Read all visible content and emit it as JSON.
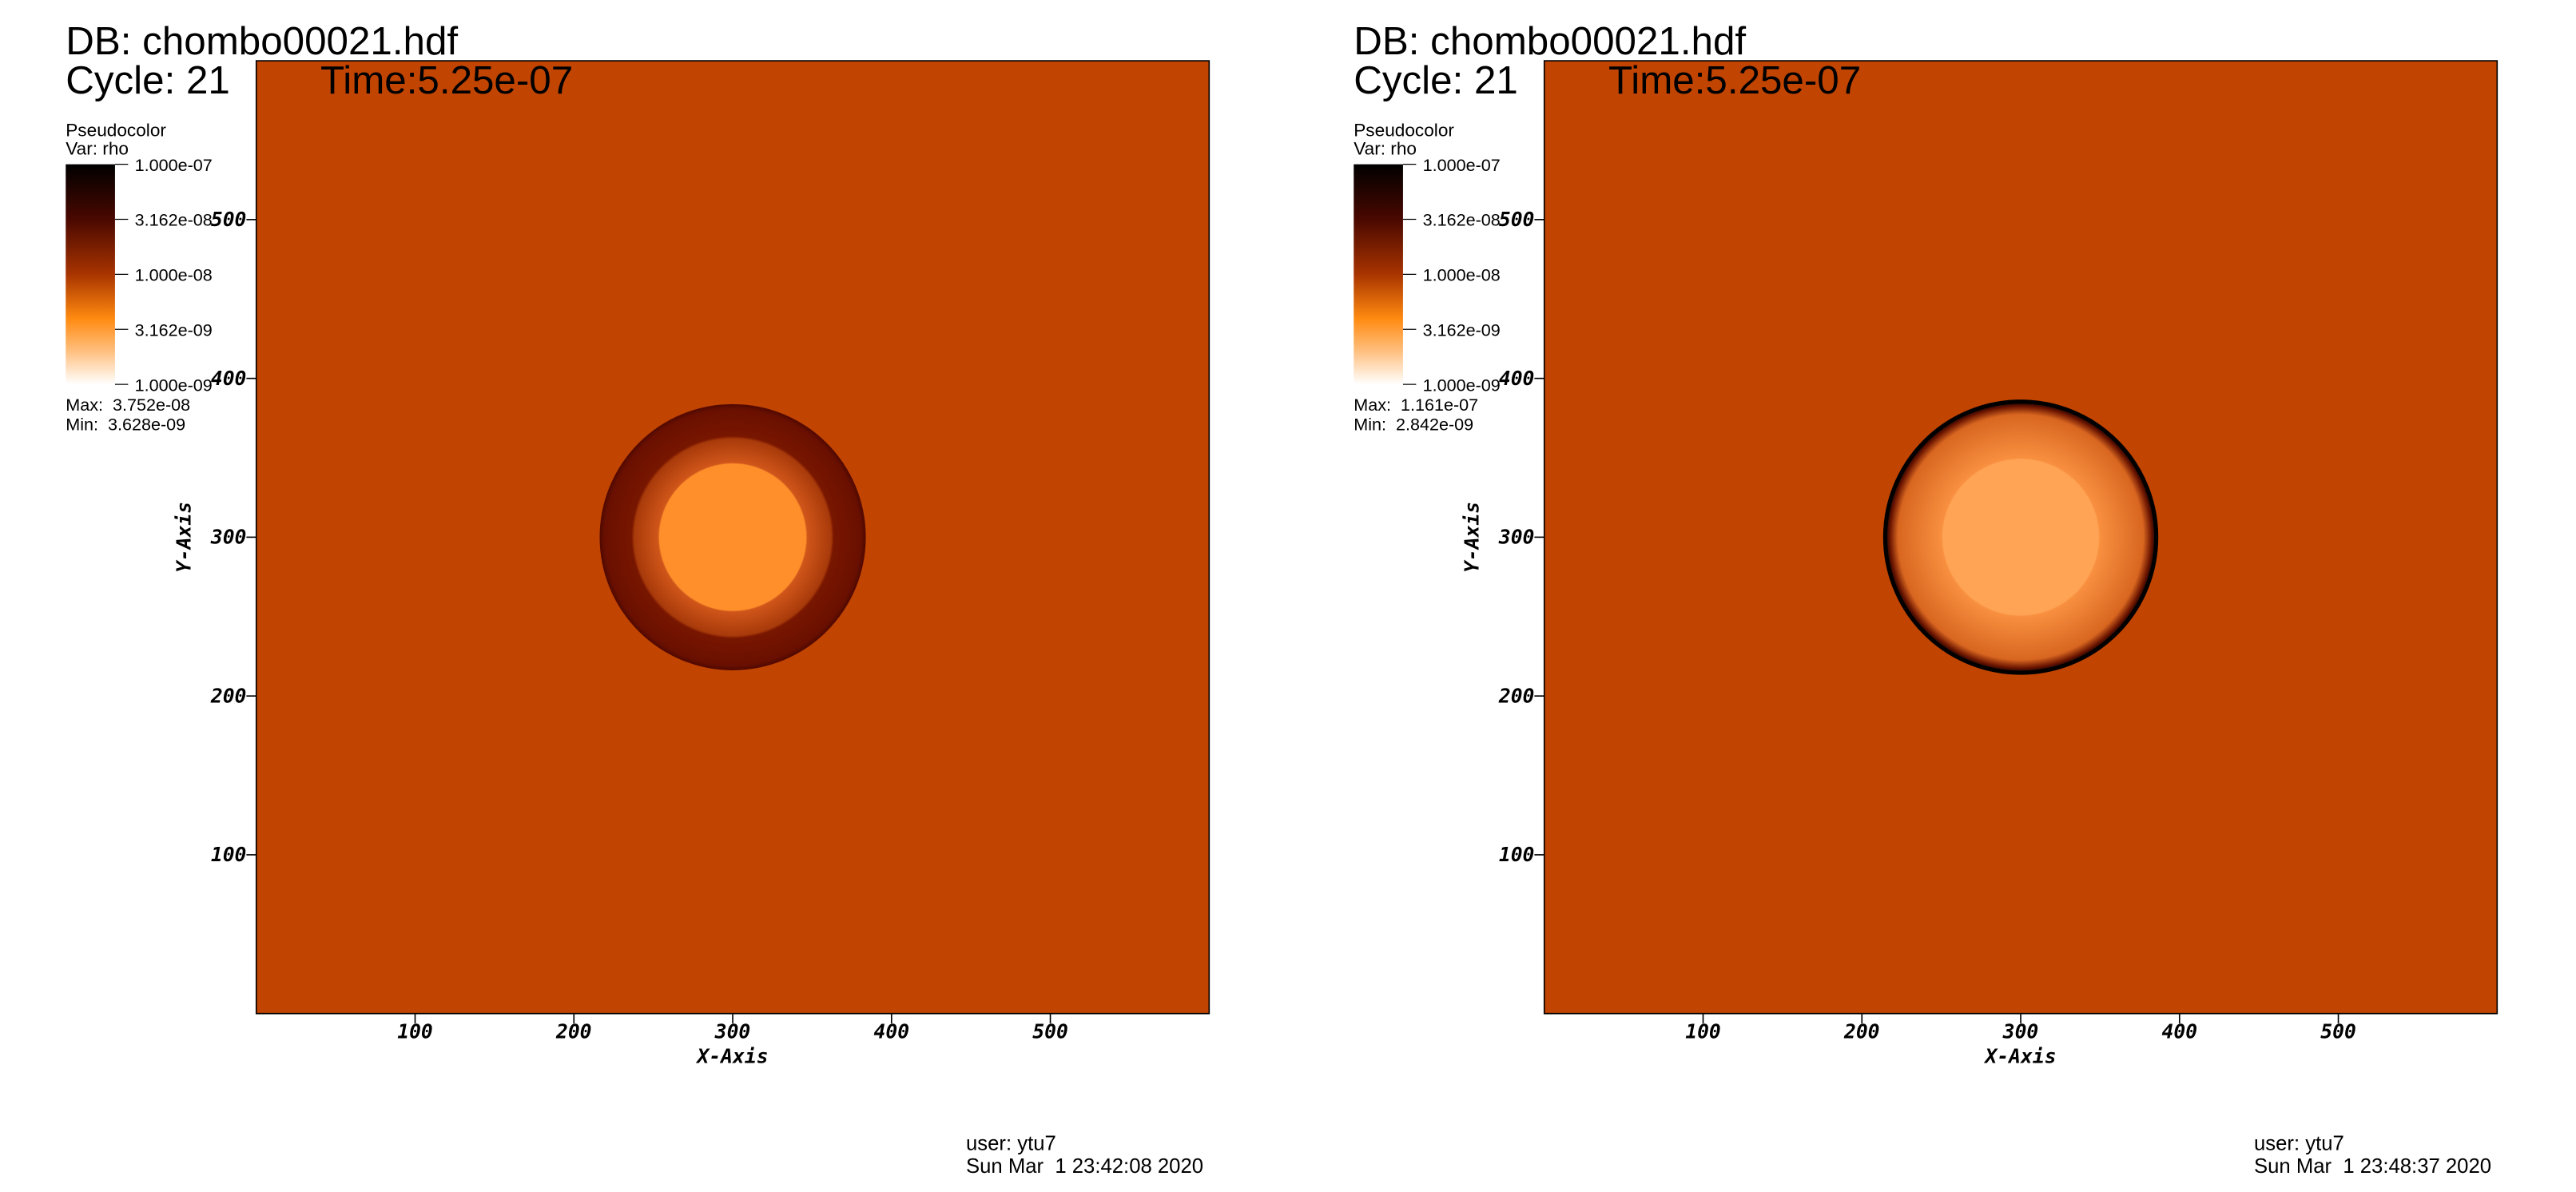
{
  "chart_data": [
    {
      "type": "pseudocolor",
      "db": "DB: chombo00021.hdf",
      "cycle": "Cycle: 21",
      "time": "Time:5.25e-07",
      "plot_label": "Pseudocolor",
      "var": "Var: rho",
      "clim": [
        1e-09,
        1e-07
      ],
      "clog": true,
      "cticks": [
        {
          "value": 1e-07,
          "label": "1.000e-07"
        },
        {
          "value": 3.162e-08,
          "label": "3.162e-08"
        },
        {
          "value": 1e-08,
          "label": "1.000e-08"
        },
        {
          "value": 3.162e-09,
          "label": "3.162e-09"
        },
        {
          "value": 1e-09,
          "label": "1.000e-09"
        }
      ],
      "max": "Max:  3.752e-08",
      "min": "Min:  3.628e-09",
      "xlabel": "X-Axis",
      "ylabel": "Y-Axis",
      "xlim": [
        0,
        600
      ],
      "ylim": [
        0,
        600
      ],
      "xticks": [
        100,
        200,
        300,
        400,
        500
      ],
      "yticks": [
        100,
        200,
        300,
        400,
        500
      ],
      "user": "user: ytu7",
      "date": "Sun Mar  1 23:42:08 2020"
    },
    {
      "type": "pseudocolor",
      "db": "DB: chombo00021.hdf",
      "cycle": "Cycle: 21",
      "time": "Time:5.25e-07",
      "plot_label": "Pseudocolor",
      "var": "Var: rho",
      "clim": [
        1e-09,
        1e-07
      ],
      "clog": true,
      "cticks": [
        {
          "value": 1e-07,
          "label": "1.000e-07"
        },
        {
          "value": 3.162e-08,
          "label": "3.162e-08"
        },
        {
          "value": 1e-08,
          "label": "1.000e-08"
        },
        {
          "value": 3.162e-09,
          "label": "3.162e-09"
        },
        {
          "value": 1e-09,
          "label": "1.000e-09"
        }
      ],
      "max": "Max:  1.161e-07",
      "min": "Min:  2.842e-09",
      "xlabel": "X-Axis",
      "ylabel": "Y-Axis",
      "xlim": [
        0,
        600
      ],
      "ylim": [
        0,
        600
      ],
      "xticks": [
        100,
        200,
        300,
        400,
        500
      ],
      "yticks": [
        100,
        200,
        300,
        400,
        500
      ],
      "user": "user: ytu7",
      "date": "Sun Mar  1 23:48:37 2020"
    }
  ]
}
